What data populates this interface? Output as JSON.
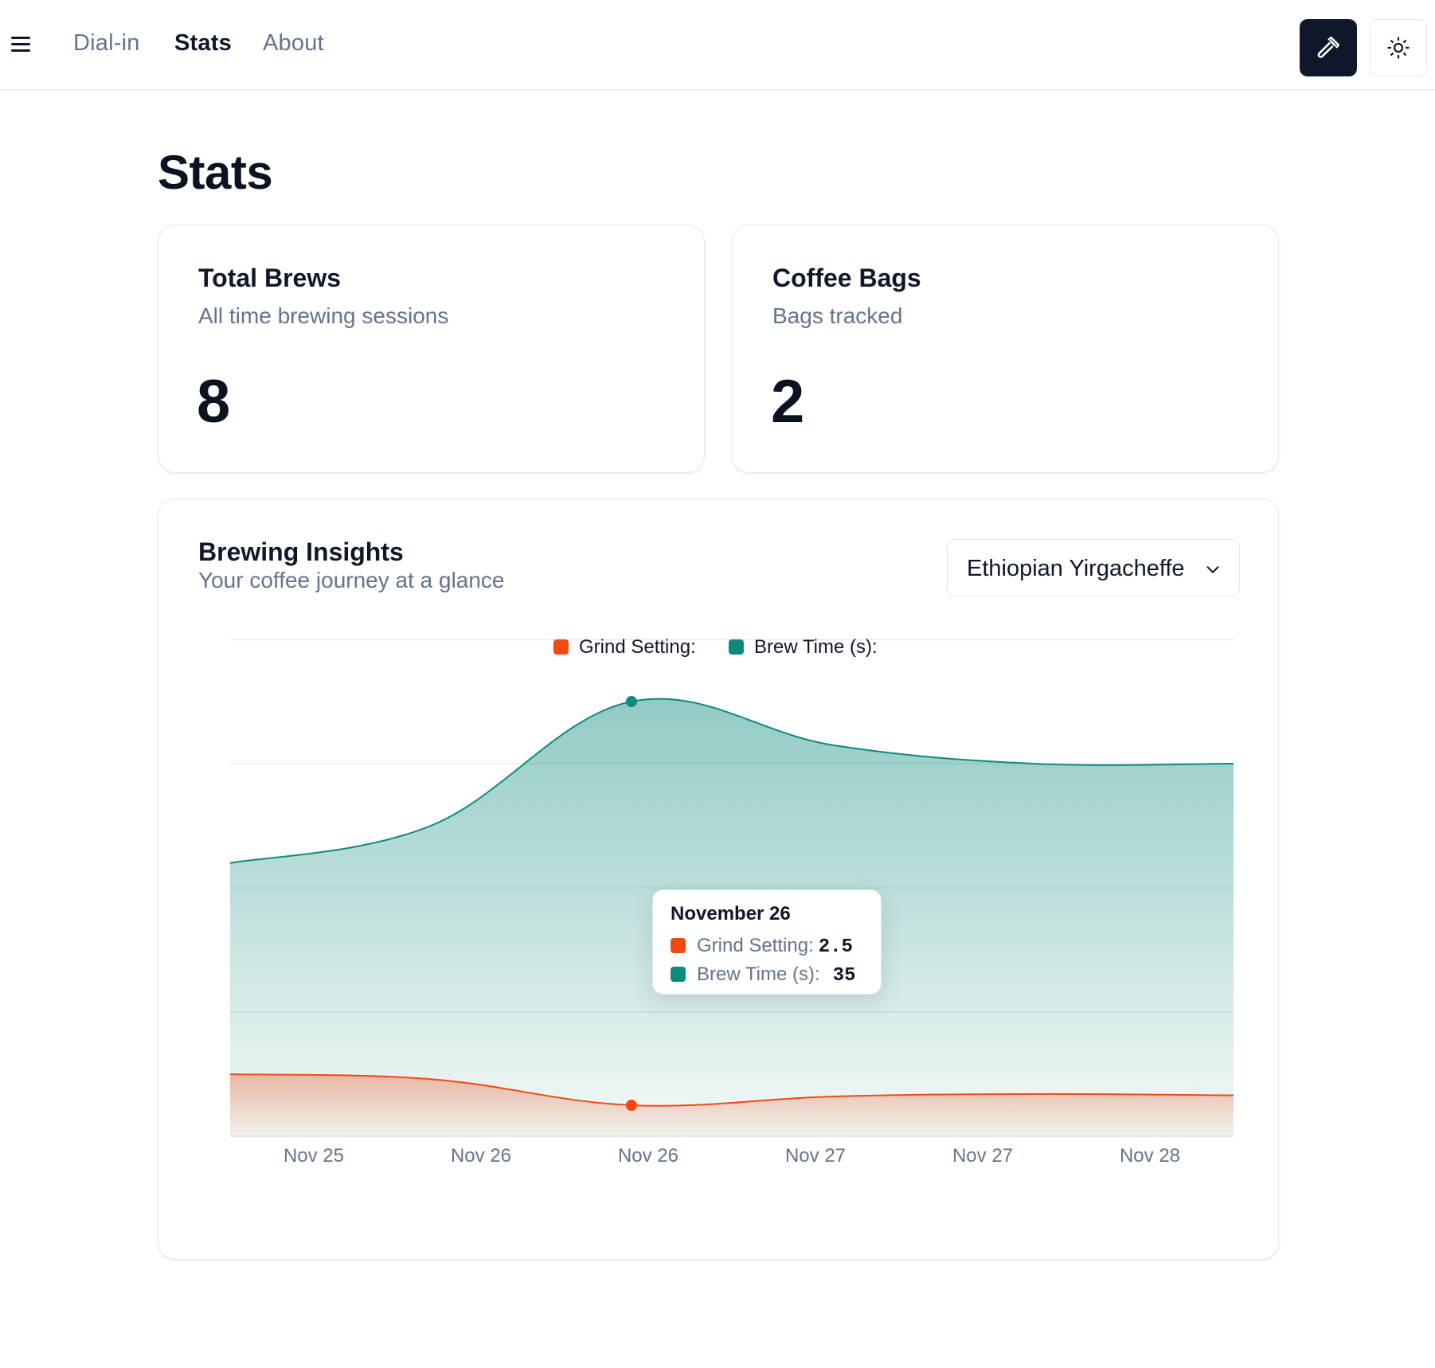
{
  "nav": {
    "links": [
      {
        "label": "Dial-in"
      },
      {
        "label": "Stats"
      },
      {
        "label": "About"
      }
    ],
    "active": "Stats",
    "icons": {
      "menu": "hamburger-menu-icon",
      "brew": "hammer-icon",
      "theme": "sun-icon"
    }
  },
  "page": {
    "title": "Stats"
  },
  "stats": [
    {
      "title": "Total Brews",
      "description": "All time brewing sessions",
      "value": "8"
    },
    {
      "title": "Coffee Bags",
      "description": "Bags tracked",
      "value": "2"
    }
  ],
  "insights": {
    "title": "Brewing Insights",
    "description": "Your coffee journey at a glance",
    "selected_coffee": "Ethiopian Yirgacheffe",
    "tooltip": {
      "title": "November 26",
      "rows": [
        {
          "label": "Grind Setting:",
          "value": "2.5"
        },
        {
          "label": "Brew Time (s):",
          "value": "35"
        }
      ]
    }
  },
  "colors": {
    "grind": "#f04a12",
    "brew": "#0e8a7d",
    "accent_dark": "#0f172a"
  },
  "chart_data": {
    "type": "area",
    "categories": [
      "Nov 25",
      "Nov 26",
      "Nov 26",
      "Nov 27",
      "Nov 27",
      "Nov 28"
    ],
    "legend": {
      "placement": "top-center"
    },
    "grid": true,
    "ylim": [
      0,
      40
    ],
    "series": [
      {
        "name": "Grind Setting:",
        "color": "#f04a12",
        "values": [
          5,
          4.6,
          2.5,
          3.2,
          3.4,
          3.3
        ]
      },
      {
        "name": "Brew Time (s):",
        "color": "#0e8a7d",
        "values": [
          22,
          25,
          35,
          31.5,
          30,
          30
        ]
      }
    ],
    "highlight_index": 2
  }
}
